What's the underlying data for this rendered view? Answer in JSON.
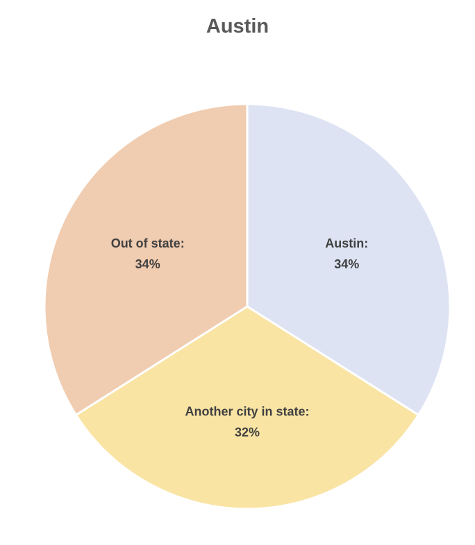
{
  "chart_data": {
    "type": "pie",
    "title": "Austin",
    "slices": [
      {
        "label": "Austin:",
        "value_label": "34%",
        "value": 34,
        "color": "#dde3f3"
      },
      {
        "label": "Another city in state:",
        "value_label": "32%",
        "value": 32,
        "color": "#f9e4a4"
      },
      {
        "label": "Out of state:",
        "value_label": "34%",
        "value": 34,
        "color": "#f0ccb0"
      }
    ],
    "start_angle_deg": 0,
    "direction": "clockwise",
    "legend": "none"
  }
}
